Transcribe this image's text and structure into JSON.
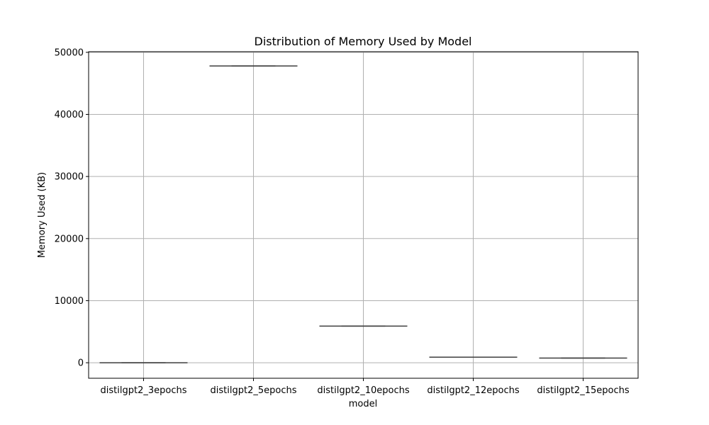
{
  "chart_data": {
    "type": "box",
    "title": "Distribution of Memory Used by Model",
    "xlabel": "model",
    "ylabel": "Memory Used (KB)",
    "categories": [
      "distilgpt2_3epochs",
      "distilgpt2_5epochs",
      "distilgpt2_10epochs",
      "distilgpt2_12epochs",
      "distilgpt2_15epochs"
    ],
    "values": [
      0,
      47800,
      5900,
      900,
      750
    ],
    "yticks": [
      0,
      10000,
      20000,
      30000,
      40000,
      50000
    ],
    "ylim": [
      -2500,
      50100
    ],
    "grid": true,
    "colors": {
      "box_line": "#3f3f3f",
      "grid": "#b0b0b0",
      "frame": "#000000"
    }
  }
}
